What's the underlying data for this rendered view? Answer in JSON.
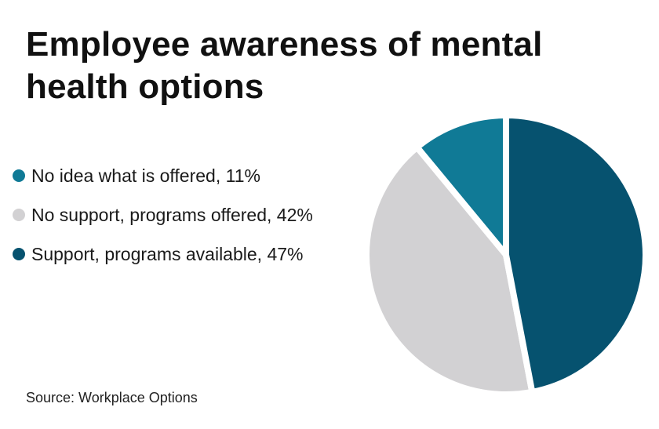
{
  "chart_data": {
    "type": "pie",
    "title": "Employee awareness of mental health options",
    "source": "Source: Workplace Options",
    "legend_position": "left",
    "slices": [
      {
        "label": "No idea what is offered, 11%",
        "value": 11,
        "color": "#107a96"
      },
      {
        "label": "No support, programs offered, 42%",
        "value": 42,
        "color": "#d2d1d3"
      },
      {
        "label": "Support, programs available, 47%",
        "value": 47,
        "color": "#06526f"
      }
    ]
  }
}
